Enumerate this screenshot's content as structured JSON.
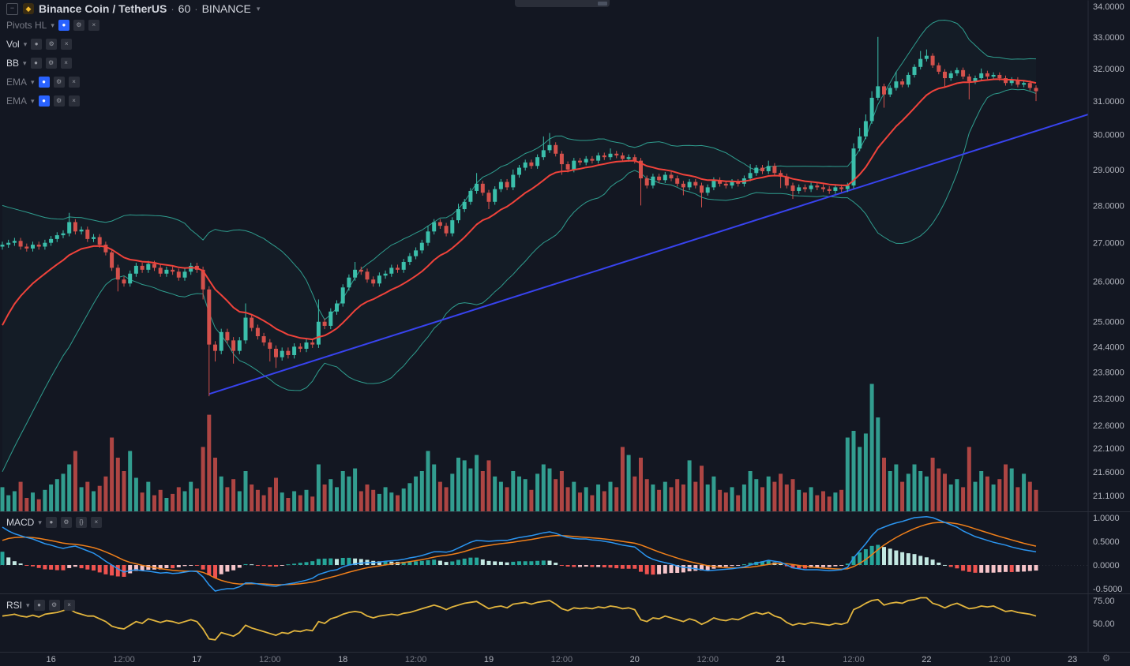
{
  "symbol": {
    "name": "Binance Coin / TetherUS",
    "interval": "60",
    "exchange": "BINANCE",
    "separator": "·",
    "collapse_glyph": "−",
    "logo_glyph": "◆",
    "chevron": "▾"
  },
  "legend": {
    "indicators": [
      {
        "label": "Pivots HL",
        "dim": true,
        "eye_active": true,
        "icons": [
          "visibility",
          "settings",
          "close"
        ]
      },
      {
        "label": "Vol",
        "dim": false,
        "eye_active": false,
        "icons": [
          "visibility",
          "settings",
          "close"
        ]
      },
      {
        "label": "BB",
        "dim": false,
        "eye_active": false,
        "icons": [
          "visibility",
          "settings",
          "close"
        ]
      },
      {
        "label": "EMA",
        "dim": true,
        "eye_active": true,
        "icons": [
          "visibility",
          "settings",
          "close"
        ]
      },
      {
        "label": "EMA",
        "dim": true,
        "eye_active": true,
        "icons": [
          "visibility",
          "settings",
          "close"
        ]
      }
    ]
  },
  "panes": {
    "macd": {
      "label": "MACD",
      "icons": [
        "visibility",
        "settings",
        "source",
        "close"
      ],
      "axis_labels": [
        "1.0000",
        "0.5000",
        "0.0000",
        "-0.5000"
      ],
      "axis_values": [
        1.0,
        0.5,
        0.0,
        -0.5
      ]
    },
    "rsi": {
      "label": "RSI",
      "icons": [
        "visibility",
        "settings",
        "close"
      ],
      "axis_labels": [
        "75.00",
        "50.00"
      ],
      "axis_values": [
        75,
        50
      ]
    }
  },
  "price_axis": {
    "labels": [
      "34.0000",
      "33.0000",
      "32.0000",
      "31.0000",
      "30.0000",
      "29.0000",
      "28.0000",
      "27.0000",
      "26.0000",
      "25.0000",
      "24.4000",
      "23.8000",
      "23.2000",
      "22.6000",
      "22.1000",
      "21.6000",
      "21.1000"
    ],
    "values": [
      34.0,
      33.0,
      32.0,
      31.0,
      30.0,
      29.0,
      28.0,
      27.0,
      26.0,
      25.0,
      24.4,
      23.8,
      23.2,
      22.6,
      22.1,
      21.6,
      21.1
    ],
    "scale": "log"
  },
  "time_axis": {
    "labels": [
      {
        "text": "16",
        "index": 8,
        "major": true
      },
      {
        "text": "12:00",
        "index": 20,
        "major": false
      },
      {
        "text": "17",
        "index": 32,
        "major": true
      },
      {
        "text": "12:00",
        "index": 44,
        "major": false
      },
      {
        "text": "18",
        "index": 56,
        "major": true
      },
      {
        "text": "12:00",
        "index": 68,
        "major": false
      },
      {
        "text": "19",
        "index": 80,
        "major": true
      },
      {
        "text": "12:00",
        "index": 92,
        "major": false
      },
      {
        "text": "20",
        "index": 104,
        "major": true
      },
      {
        "text": "12:00",
        "index": 116,
        "major": false
      },
      {
        "text": "21",
        "index": 128,
        "major": true
      },
      {
        "text": "12:00",
        "index": 140,
        "major": false
      },
      {
        "text": "22",
        "index": 152,
        "major": true
      },
      {
        "text": "12:00",
        "index": 164,
        "major": false
      },
      {
        "text": "23",
        "index": 176,
        "major": true
      }
    ],
    "settings_gear_glyph": "⚙"
  },
  "colors": {
    "background": "#131722",
    "divider": "#2a2e39",
    "text": "#b2b5be",
    "text_dim": "#787b86",
    "title": "#d1d4dc",
    "up": "#3bbfab",
    "down": "#d4514c",
    "bb": "#2f9e8f",
    "ema": "#f0433b",
    "trend": "#3843ef",
    "macd_line": "#2b95f0",
    "macd_signal": "#ef7f1a",
    "hist_pos": "#26a69a",
    "hist_pos_weak": "#c3e8e2",
    "hist_neg": "#ef5350",
    "hist_neg_weak": "#f6c4c9",
    "rsi": "#e2b53e",
    "accent": "#2962ff"
  },
  "chart_data": {
    "type": "candlestick",
    "title": "Binance Coin / TetherUS",
    "timeframe_minutes": 60,
    "exchange": "BINANCE",
    "price_range": [
      21.1,
      34.0
    ],
    "open_first": 26.9,
    "close": [
      26.95,
      27.0,
      27.05,
      26.9,
      26.85,
      26.95,
      26.9,
      27.0,
      27.1,
      27.2,
      27.25,
      27.55,
      27.3,
      27.35,
      27.1,
      27.15,
      26.95,
      26.75,
      26.35,
      26.05,
      25.95,
      26.2,
      26.4,
      26.3,
      26.45,
      26.35,
      26.2,
      26.3,
      26.25,
      26.1,
      26.25,
      26.4,
      26.3,
      25.8,
      24.45,
      24.3,
      24.75,
      24.55,
      24.3,
      24.55,
      25.1,
      24.85,
      24.65,
      24.5,
      24.35,
      24.15,
      24.3,
      24.2,
      24.4,
      24.35,
      24.5,
      24.45,
      25.0,
      24.9,
      25.25,
      25.45,
      25.85,
      26.1,
      26.3,
      26.25,
      26.05,
      25.95,
      26.15,
      26.2,
      26.35,
      26.3,
      26.5,
      26.65,
      26.8,
      27.0,
      27.3,
      27.55,
      27.45,
      27.25,
      27.6,
      27.9,
      28.1,
      28.4,
      28.6,
      28.35,
      28.1,
      28.45,
      28.65,
      28.5,
      28.85,
      29.05,
      29.2,
      29.1,
      29.35,
      29.55,
      29.7,
      29.45,
      29.15,
      29.0,
      29.25,
      29.2,
      29.3,
      29.25,
      29.4,
      29.35,
      29.45,
      29.4,
      29.3,
      29.35,
      29.25,
      28.75,
      28.55,
      28.8,
      28.7,
      28.85,
      28.75,
      28.6,
      28.5,
      28.65,
      28.55,
      28.35,
      28.5,
      28.7,
      28.6,
      28.55,
      28.65,
      28.6,
      28.75,
      28.9,
      29.05,
      28.95,
      29.1,
      28.9,
      28.8,
      28.55,
      28.4,
      28.5,
      28.45,
      28.55,
      28.5,
      28.45,
      28.4,
      28.5,
      28.45,
      28.55,
      29.6,
      29.95,
      30.4,
      31.1,
      31.45,
      31.2,
      31.4,
      31.6,
      31.5,
      31.8,
      32.05,
      32.3,
      32.4,
      32.1,
      31.9,
      31.7,
      31.85,
      31.95,
      31.75,
      31.6,
      31.7,
      31.85,
      31.75,
      31.8,
      31.7,
      31.55,
      31.65,
      31.5,
      31.55,
      31.4,
      31.3
    ],
    "high": [
      27.03,
      27.08,
      27.13,
      27.13,
      26.98,
      27.03,
      27.03,
      27.08,
      27.18,
      27.28,
      27.33,
      27.8,
      27.63,
      27.43,
      27.43,
      27.23,
      27.23,
      27.03,
      26.83,
      26.43,
      26.13,
      26.28,
      26.48,
      26.48,
      26.53,
      26.53,
      26.43,
      26.38,
      26.38,
      26.33,
      26.33,
      26.48,
      26.48,
      26.38,
      25.88,
      24.53,
      24.83,
      24.83,
      24.63,
      24.63,
      25.45,
      25.18,
      24.93,
      24.73,
      24.58,
      24.43,
      24.38,
      24.38,
      24.48,
      24.48,
      24.58,
      24.58,
      25.55,
      25.08,
      25.33,
      25.53,
      25.93,
      26.18,
      26.5,
      26.38,
      26.33,
      26.13,
      26.23,
      26.28,
      26.43,
      26.43,
      26.58,
      26.73,
      26.88,
      27.08,
      27.45,
      27.63,
      27.63,
      27.53,
      27.68,
      28.05,
      28.18,
      28.48,
      28.9,
      28.68,
      28.43,
      28.53,
      28.73,
      28.73,
      29.0,
      29.13,
      29.28,
      29.28,
      29.43,
      29.95,
      30.05,
      29.78,
      29.53,
      29.23,
      29.33,
      29.33,
      29.38,
      29.38,
      29.48,
      29.48,
      29.6,
      29.53,
      29.48,
      29.43,
      29.43,
      29.33,
      28.83,
      28.88,
      28.88,
      28.93,
      28.93,
      28.83,
      28.68,
      28.73,
      28.73,
      28.63,
      28.58,
      28.78,
      28.78,
      28.68,
      28.73,
      28.73,
      28.83,
      29.15,
      29.13,
      29.13,
      29.25,
      29.18,
      28.98,
      28.88,
      28.63,
      28.58,
      28.58,
      28.63,
      28.63,
      28.58,
      28.53,
      28.58,
      28.58,
      28.63,
      29.75,
      30.2,
      30.6,
      31.3,
      33.0,
      31.53,
      31.48,
      31.9,
      31.68,
      31.88,
      32.13,
      32.55,
      32.6,
      32.48,
      32.18,
      31.98,
      31.93,
      32.03,
      32.03,
      31.83,
      31.78,
      32.0,
      31.93,
      31.88,
      31.88,
      31.78,
      31.73,
      31.73,
      31.63,
      31.63,
      31.48
    ],
    "low": [
      26.82,
      26.87,
      26.92,
      26.82,
      26.77,
      26.77,
      26.82,
      26.82,
      26.92,
      27.02,
      27.12,
      27.17,
      27.22,
      27.22,
      27.02,
      27.02,
      26.87,
      26.67,
      26.27,
      25.75,
      25.87,
      25.87,
      26.12,
      26.22,
      26.22,
      26.27,
      26.12,
      26.12,
      26.17,
      26.02,
      26.02,
      26.17,
      26.22,
      25.55,
      23.25,
      24.05,
      24.22,
      24.47,
      24.0,
      24.22,
      24.47,
      24.77,
      24.57,
      24.42,
      24.05,
      23.9,
      24.07,
      24.12,
      24.12,
      24.27,
      24.27,
      24.37,
      24.37,
      24.82,
      24.82,
      25.17,
      25.37,
      25.77,
      26.02,
      26.17,
      25.97,
      25.87,
      25.87,
      26.07,
      26.12,
      26.22,
      26.22,
      26.42,
      26.57,
      26.72,
      26.92,
      27.22,
      27.37,
      27.17,
      27.17,
      27.52,
      27.82,
      28.02,
      28.32,
      28.27,
      27.9,
      28.02,
      28.37,
      28.42,
      28.42,
      28.77,
      28.97,
      29.02,
      29.02,
      29.27,
      29.47,
      29.37,
      28.85,
      28.92,
      28.92,
      29.12,
      29.12,
      29.17,
      29.17,
      29.27,
      29.27,
      29.32,
      29.22,
      29.22,
      29.17,
      28.0,
      28.47,
      28.47,
      28.62,
      28.62,
      28.67,
      28.52,
      28.28,
      28.42,
      28.47,
      27.95,
      28.27,
      28.42,
      28.52,
      28.47,
      28.47,
      28.52,
      28.52,
      28.67,
      28.82,
      28.87,
      28.87,
      28.82,
      28.48,
      28.47,
      28.18,
      28.32,
      28.37,
      28.37,
      28.42,
      28.37,
      28.32,
      28.32,
      28.37,
      28.37,
      28.47,
      29.52,
      29.87,
      30.32,
      31.02,
      30.8,
      31.12,
      31.32,
      31.42,
      31.42,
      31.72,
      31.97,
      32.22,
      32.02,
      31.82,
      31.4,
      31.62,
      31.77,
      31.67,
      31.05,
      31.52,
      31.62,
      31.67,
      31.67,
      31.62,
      31.47,
      31.47,
      31.42,
      31.42,
      31.32,
      31.0
    ],
    "volume": [
      18,
      12,
      15,
      22,
      10,
      14,
      9,
      16,
      20,
      24,
      28,
      35,
      45,
      18,
      22,
      15,
      19,
      26,
      55,
      40,
      30,
      45,
      25,
      14,
      22,
      12,
      16,
      10,
      13,
      18,
      15,
      22,
      17,
      48,
      72,
      40,
      26,
      18,
      24,
      15,
      30,
      20,
      16,
      12,
      18,
      25,
      14,
      10,
      15,
      12,
      16,
      11,
      35,
      20,
      24,
      18,
      30,
      26,
      32,
      15,
      20,
      16,
      13,
      18,
      14,
      12,
      17,
      21,
      26,
      30,
      45,
      35,
      22,
      18,
      28,
      40,
      38,
      32,
      42,
      30,
      38,
      26,
      22,
      18,
      30,
      26,
      24,
      16,
      28,
      35,
      32,
      24,
      30,
      18,
      22,
      14,
      18,
      12,
      20,
      15,
      22,
      18,
      48,
      42,
      26,
      40,
      24,
      20,
      16,
      22,
      18,
      24,
      20,
      38,
      22,
      34,
      20,
      26,
      16,
      14,
      18,
      12,
      20,
      30,
      24,
      18,
      26,
      22,
      28,
      20,
      24,
      16,
      14,
      18,
      12,
      15,
      11,
      14,
      16,
      55,
      60,
      48,
      58,
      95,
      70,
      40,
      30,
      35,
      22,
      28,
      35,
      30,
      26,
      40,
      32,
      28,
      20,
      24,
      18,
      48,
      22,
      30,
      26,
      20,
      24,
      35,
      32,
      18,
      28,
      22,
      16
    ],
    "overlays": {
      "ema_period": 14,
      "ema_init": 24.6,
      "bb_period": 20,
      "bb_mult": 2,
      "bb_init_upper": 28.0,
      "bb_init_lower": 21.6,
      "trendline": {
        "i1": 34,
        "p1": 23.3,
        "i2": 178.6,
        "p2": 30.6
      }
    },
    "macd": {
      "signal_period": 9,
      "signal_init": 0.45,
      "line": [
        0.8,
        0.72,
        0.66,
        0.62,
        0.58,
        0.55,
        0.5,
        0.45,
        0.42,
        0.38,
        0.35,
        0.38,
        0.4,
        0.35,
        0.3,
        0.25,
        0.17,
        0.08,
        0.0,
        -0.08,
        -0.15,
        -0.12,
        -0.1,
        -0.12,
        -0.13,
        -0.15,
        -0.17,
        -0.16,
        -0.18,
        -0.17,
        -0.15,
        -0.13,
        -0.14,
        -0.25,
        -0.42,
        -0.55,
        -0.52,
        -0.5,
        -0.5,
        -0.46,
        -0.38,
        -0.38,
        -0.4,
        -0.42,
        -0.44,
        -0.45,
        -0.42,
        -0.4,
        -0.38,
        -0.35,
        -0.32,
        -0.28,
        -0.2,
        -0.16,
        -0.12,
        -0.1,
        -0.04,
        0.0,
        0.02,
        0.04,
        0.05,
        0.05,
        0.06,
        0.08,
        0.09,
        0.1,
        0.12,
        0.15,
        0.17,
        0.2,
        0.24,
        0.28,
        0.28,
        0.27,
        0.3,
        0.36,
        0.42,
        0.48,
        0.52,
        0.51,
        0.5,
        0.51,
        0.52,
        0.52,
        0.55,
        0.58,
        0.6,
        0.62,
        0.65,
        0.68,
        0.7,
        0.67,
        0.62,
        0.58,
        0.56,
        0.55,
        0.55,
        0.53,
        0.52,
        0.5,
        0.48,
        0.45,
        0.42,
        0.4,
        0.38,
        0.28,
        0.18,
        0.12,
        0.08,
        0.05,
        0.02,
        -0.02,
        -0.05,
        -0.06,
        -0.08,
        -0.1,
        -0.12,
        -0.11,
        -0.1,
        -0.09,
        -0.08,
        -0.06,
        -0.04,
        0.0,
        0.04,
        0.07,
        0.1,
        0.08,
        0.06,
        0.0,
        -0.06,
        -0.08,
        -0.1,
        -0.1,
        -0.1,
        -0.11,
        -0.12,
        -0.11,
        -0.1,
        -0.05,
        0.15,
        0.3,
        0.45,
        0.62,
        0.75,
        0.8,
        0.85,
        0.89,
        0.92,
        0.96,
        1.0,
        1.01,
        1.02,
        1.0,
        0.95,
        0.9,
        0.85,
        0.8,
        0.72,
        0.66,
        0.6,
        0.56,
        0.52,
        0.48,
        0.45,
        0.42,
        0.38,
        0.35,
        0.32,
        0.3,
        0.28
      ]
    },
    "rsi": {
      "values": [
        58,
        59,
        60,
        58,
        57,
        59,
        57,
        60,
        61,
        62,
        64,
        66,
        62,
        60,
        58,
        58,
        55,
        52,
        47,
        45,
        44,
        48,
        52,
        50,
        55,
        53,
        51,
        53,
        52,
        50,
        52,
        54,
        52,
        44,
        33,
        32,
        40,
        38,
        36,
        40,
        48,
        45,
        43,
        41,
        39,
        37,
        40,
        39,
        42,
        41,
        43,
        42,
        52,
        50,
        55,
        57,
        60,
        62,
        63,
        62,
        58,
        56,
        58,
        59,
        60,
        59,
        61,
        62,
        64,
        66,
        68,
        70,
        68,
        65,
        68,
        70,
        72,
        73,
        74,
        70,
        66,
        68,
        69,
        67,
        71,
        72,
        73,
        71,
        73,
        74,
        75,
        71,
        66,
        64,
        67,
        66,
        67,
        66,
        68,
        67,
        69,
        68,
        66,
        67,
        65,
        54,
        52,
        56,
        55,
        58,
        56,
        54,
        52,
        55,
        53,
        49,
        52,
        56,
        54,
        53,
        55,
        54,
        57,
        60,
        62,
        60,
        62,
        58,
        56,
        51,
        48,
        50,
        49,
        51,
        50,
        49,
        48,
        50,
        49,
        51,
        65,
        68,
        72,
        75,
        76,
        70,
        72,
        73,
        72,
        75,
        76,
        78,
        78,
        72,
        70,
        67,
        70,
        72,
        69,
        66,
        67,
        69,
        68,
        69,
        66,
        63,
        64,
        62,
        61,
        60,
        58
      ]
    }
  }
}
